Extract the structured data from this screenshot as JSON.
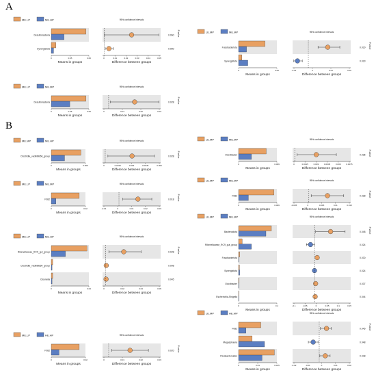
{
  "section_labels": [
    "A",
    "B"
  ],
  "colors": {
    "orange": "#E8A062",
    "blue": "#5B7EC2",
    "panel_bg": "#E6E6E6"
  },
  "common": {
    "means_label": "Means in groups",
    "diff_label": "Difference between groups",
    "ci_title": "95% confidence intervals",
    "pvalue_label": "P-value"
  },
  "chart_data": [
    {
      "type": "bar+ci",
      "panel": "A",
      "groups": [
        "ME.LP",
        "ME.HP"
      ],
      "categories": [
        "Desulfobacteria",
        "Synergistota"
      ],
      "series": [
        {
          "name": "ME.LP",
          "values": [
            0.06,
            0.008
          ]
        },
        {
          "name": "ME.HP",
          "values": [
            0.022,
            0.004
          ]
        }
      ],
      "means_ticks": [
        "0",
        "0.05",
        "0.06"
      ],
      "means_max": 0.065,
      "diff": [
        0.03,
        0.005
      ],
      "ci_low": [
        0.0,
        0.001
      ],
      "ci_high": [
        0.06,
        0.01
      ],
      "diff_ticks": [
        "0",
        "0.01",
        "0.02",
        "0.03",
        "0.04",
        "0.05"
      ],
      "diff_range": [
        -0.002,
        0.062
      ],
      "pvalues": [
        "0.060",
        "0.050"
      ]
    },
    {
      "type": "bar+ci",
      "panel": "A",
      "groups": [
        "LE.MP",
        "ME.MP"
      ],
      "categories": [
        "Fusobacteriota",
        "Synergistota"
      ],
      "series": [
        {
          "name": "LE.MP",
          "values": [
            0.04,
            0.005
          ]
        },
        {
          "name": "ME.MP",
          "values": [
            0.012,
            0.014
          ]
        }
      ],
      "means_ticks": [
        "0",
        "0.05"
      ],
      "means_max": 0.058,
      "diff": [
        0.016,
        -0.009
      ],
      "ci_low": [
        0.008,
        -0.012
      ],
      "ci_high": [
        0.026,
        -0.005
      ],
      "diff_ticks": [
        "-0.01",
        "0",
        "0.01",
        "0.02"
      ],
      "diff_range": [
        -0.013,
        0.035
      ],
      "pvalues": [
        "0.030",
        "0.023"
      ]
    },
    {
      "type": "bar+ci",
      "panel": "A",
      "groups": [
        "ME.LP",
        "ME.MP"
      ],
      "categories": [
        "Desulfobacteria"
      ],
      "series": [
        {
          "name": "ME.LP",
          "values": [
            0.06
          ]
        },
        {
          "name": "ME.MP",
          "values": [
            0.032
          ]
        }
      ],
      "means_ticks": [
        "0",
        "0.05",
        "0.06"
      ],
      "means_max": 0.065,
      "diff": [
        0.017
      ],
      "ci_low": [
        0.001
      ],
      "ci_high": [
        0.033
      ],
      "diff_ticks": [
        "0",
        "0.01",
        "0.02",
        "0.03"
      ],
      "diff_range": [
        -0.004,
        0.034
      ],
      "pvalues": [
        "0.028"
      ]
    },
    {
      "type": "bar+ci",
      "panel": "B",
      "groups": [
        "ME.MP",
        "ME.HP"
      ],
      "categories": [
        "Clostridia_vadinBB60_group"
      ],
      "series": [
        {
          "name": "ME.MP",
          "values": [
            0.0078
          ]
        },
        {
          "name": "ME.HP",
          "values": [
            0.0035
          ]
        }
      ],
      "means_ticks": [
        "0",
        "0.009"
      ],
      "means_max": 0.009,
      "diff": [
        0.003
      ],
      "ci_low": [
        0.0003
      ],
      "ci_high": [
        0.0055
      ],
      "diff_ticks": [
        "0",
        "0.0015",
        "0.003",
        "0.0045",
        "0.006"
      ],
      "diff_range": [
        -0.0003,
        0.0062
      ],
      "pvalues": [
        "0.028"
      ]
    },
    {
      "type": "bar+ci",
      "panel": "B",
      "groups": [
        "LE.MP",
        "ME.MP"
      ],
      "categories": [
        "Odoribacter"
      ],
      "series": [
        {
          "name": "LE.MP",
          "values": [
            0.0065
          ]
        },
        {
          "name": "ME.MP",
          "values": [
            0.003
          ]
        }
      ],
      "means_ticks": [
        "0",
        "0.009"
      ],
      "means_max": 0.009,
      "diff": [
        0.003
      ],
      "ci_low": [
        0.0003
      ],
      "ci_high": [
        0.0058
      ],
      "diff_ticks": [
        "0",
        "0.0015",
        "0.003",
        "0.0045",
        "0.006",
        "0.0075"
      ],
      "diff_range": [
        -0.0003,
        0.0078
      ],
      "pvalues": [
        "0.035"
      ]
    },
    {
      "type": "bar+ci",
      "panel": "B",
      "groups": [
        "ME.LP",
        "ME.MP"
      ],
      "categories": [
        "F082"
      ],
      "series": [
        {
          "name": "ME.LP",
          "values": [
            0.018
          ]
        },
        {
          "name": "ME.MP",
          "values": [
            0.003
          ]
        }
      ],
      "means_ticks": [
        "0",
        "0.02"
      ],
      "means_max": 0.022,
      "diff": [
        0.015
      ],
      "ci_low": [
        0.003
      ],
      "ci_high": [
        0.026
      ],
      "diff_ticks": [
        "-0.01",
        "0",
        "0.01",
        "0.02",
        "0.03"
      ],
      "diff_range": [
        -0.013,
        0.033
      ],
      "pvalues": [
        "0.018"
      ]
    },
    {
      "type": "bar+ci",
      "panel": "B",
      "groups": [
        "LE.MP",
        "ME.MP"
      ],
      "categories": [
        "F082"
      ],
      "series": [
        {
          "name": "LE.MP",
          "values": [
            0.018
          ]
        },
        {
          "name": "ME.MP",
          "values": [
            0.005
          ]
        }
      ],
      "means_ticks": [
        "0",
        "0.009"
      ],
      "means_max": 0.0195,
      "diff": [
        0.008
      ],
      "ci_low": [
        0.001
      ],
      "ci_high": [
        0.015
      ],
      "diff_ticks": [
        "-0.005",
        "0",
        "0.005",
        "0.01",
        "0.015"
      ],
      "diff_range": [
        -0.007,
        0.018
      ],
      "pvalues": [
        "0.028"
      ]
    },
    {
      "type": "bar+ci",
      "panel": "B",
      "groups": [
        "ME.LP",
        "ME.HP"
      ],
      "categories": [
        "Rikenellaceae_RC9_gut_group",
        "Clostridia_vadinBB60_group",
        "Olsenella"
      ],
      "series": [
        {
          "name": "ME.LP",
          "values": [
            0.038,
            0.0015,
            0.0015
          ]
        },
        {
          "name": "ME.HP",
          "values": [
            0.015,
            0.0008,
            0.0008
          ]
        }
      ],
      "means_ticks": [
        "0",
        "0.04"
      ],
      "means_max": 0.04,
      "diff": [
        0.023,
        0.0007,
        0.0005
      ],
      "ci_low": [
        0.004,
        -0.0005,
        -0.001
      ],
      "ci_high": [
        0.045,
        0.002,
        0.0015
      ],
      "diff_ticks": [
        "0",
        "0.02",
        "0.04",
        "0.06"
      ],
      "diff_range": [
        -0.004,
        0.07
      ],
      "pvalues": [
        "0.028",
        "0.008",
        "0.045"
      ]
    },
    {
      "type": "bar+ci",
      "panel": "B",
      "groups": [
        "LE.MP",
        "ME.MP"
      ],
      "categories": [
        "Bacteroidota",
        "Rikenellaceae_RC9_gut_group",
        "Fusobacteriota",
        "Synergistota",
        "Odoribacter",
        "Escherichia-Shigella"
      ],
      "series": [
        {
          "name": "LE.MP",
          "values": [
            0.36,
            0.04,
            0.012,
            0.01,
            0.005,
            0.003
          ]
        },
        {
          "name": "ME.MP",
          "values": [
            0.3,
            0.14,
            0.002,
            0.012,
            0.002,
            0.002
          ]
        }
      ],
      "means_ticks": [
        "0",
        "0.4"
      ],
      "means_max": 0.42,
      "diff": [
        0.07,
        -0.02,
        0.01,
        -0.002,
        0.003,
        0.001
      ],
      "ci_low": [
        0.003,
        -0.038,
        0.004,
        -0.005,
        0.0005,
        -0.0005
      ],
      "ci_high": [
        0.135,
        -0.003,
        0.016,
        0.001,
        0.006,
        0.003
      ],
      "diff_ticks": [
        "-0.1",
        "-0.05",
        "0",
        "0.05",
        "0.1",
        "0.15"
      ],
      "diff_range": [
        -0.1,
        0.16
      ],
      "pvalues": [
        "0.048",
        "0.024",
        "0.030",
        "0.024",
        "0.037",
        "0.044"
      ]
    },
    {
      "type": "bar+ci",
      "panel": "B",
      "groups": [
        "ME.LP",
        "HE.HP"
      ],
      "categories": [
        "F082"
      ],
      "series": [
        {
          "name": "ME.LP",
          "values": [
            0.018
          ]
        },
        {
          "name": "HE.HP",
          "values": [
            0.005
          ]
        }
      ],
      "means_ticks": [
        "0",
        "0.02"
      ],
      "means_max": 0.022,
      "diff": [
        0.014
      ],
      "ci_low": [
        0.002
      ],
      "ci_high": [
        0.026
      ],
      "diff_ticks": [
        "0",
        "0.01",
        "0.02",
        "0.03"
      ],
      "diff_range": [
        -0.004,
        0.034
      ],
      "pvalues": [
        "0.020"
      ]
    },
    {
      "type": "bar+ci",
      "panel": "B",
      "groups": [
        "LE.MP",
        "HE.MP"
      ],
      "categories": [
        "F082",
        "Megasphaera",
        "Parabacteroides"
      ],
      "series": [
        {
          "name": "LE.MP",
          "values": [
            0.009,
            0.0055,
            0.0145
          ]
        },
        {
          "name": "HE.MP",
          "values": [
            0.003,
            0.0105,
            0.0095
          ]
        }
      ],
      "means_ticks": [
        "0",
        "0.01",
        "0.015"
      ],
      "means_max": 0.0155,
      "diff": [
        0.006,
        -0.005,
        0.005
      ],
      "ci_low": [
        0.001,
        -0.009,
        0.0005
      ],
      "ci_high": [
        0.01,
        -0.001,
        0.009
      ],
      "diff_ticks": [
        "-0.02",
        "-0.01",
        "0",
        "0.01",
        "0.02"
      ],
      "diff_range": [
        -0.022,
        0.026
      ],
      "pvalues": [
        "0.045",
        "0.048",
        "0.048"
      ]
    }
  ]
}
